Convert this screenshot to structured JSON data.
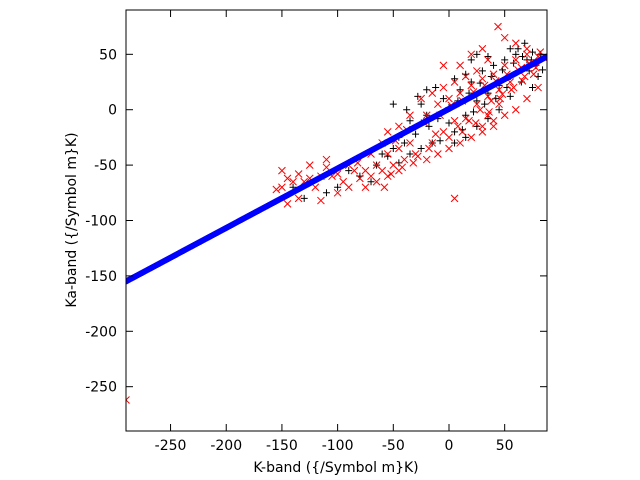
{
  "chart_data": {
    "type": "scatter",
    "title": "",
    "xlabel": "K-band ({/Symbol m}K)",
    "ylabel": "Ka-band ({/Symbol m}K)",
    "xlim": [
      -290,
      88
    ],
    "ylim": [
      -290,
      90
    ],
    "xticks": [
      -250,
      -200,
      -150,
      -100,
      -50,
      0,
      50
    ],
    "yticks": [
      -250,
      -200,
      -150,
      -100,
      -50,
      0,
      50
    ],
    "grid": false,
    "legend": "none",
    "series": [
      {
        "marker": "plus",
        "color": "#000000",
        "points": [
          [
            -25,
            5
          ],
          [
            -18,
            -15
          ],
          [
            -10,
            -8
          ],
          [
            -5,
            10
          ],
          [
            0,
            2
          ],
          [
            5,
            -20
          ],
          [
            10,
            18
          ],
          [
            15,
            -5
          ],
          [
            20,
            25
          ],
          [
            25,
            8
          ],
          [
            30,
            35
          ],
          [
            35,
            15
          ],
          [
            40,
            40
          ],
          [
            45,
            22
          ],
          [
            50,
            45
          ],
          [
            55,
            30
          ],
          [
            60,
            50
          ],
          [
            62,
            55
          ],
          [
            66,
            48
          ],
          [
            70,
            45
          ],
          [
            72,
            35
          ],
          [
            75,
            52
          ],
          [
            78,
            40
          ],
          [
            80,
            30
          ],
          [
            82,
            50
          ],
          [
            84,
            36
          ],
          [
            -40,
            -30
          ],
          [
            -45,
            -25
          ],
          [
            -50,
            -35
          ],
          [
            -55,
            -42
          ],
          [
            -60,
            -40
          ],
          [
            -65,
            -50
          ],
          [
            -70,
            -65
          ],
          [
            -35,
            -10
          ],
          [
            -30,
            -22
          ],
          [
            -20,
            -5
          ],
          [
            -12,
            20
          ],
          [
            -8,
            -28
          ],
          [
            0,
            -12
          ],
          [
            8,
            8
          ],
          [
            12,
            -18
          ],
          [
            18,
            15
          ],
          [
            22,
            -2
          ],
          [
            28,
            24
          ],
          [
            32,
            5
          ],
          [
            38,
            30
          ],
          [
            42,
            10
          ],
          [
            48,
            36
          ],
          [
            52,
            20
          ],
          [
            58,
            42
          ],
          [
            20,
            45
          ],
          [
            25,
            50
          ],
          [
            -80,
            -60
          ],
          [
            -90,
            -55
          ],
          [
            -100,
            -70
          ],
          [
            -110,
            -75
          ],
          [
            -130,
            -80
          ],
          [
            -140,
            -70
          ],
          [
            -45,
            -48
          ],
          [
            -35,
            -40
          ],
          [
            -25,
            -35
          ],
          [
            -15,
            -30
          ],
          [
            5,
            -30
          ],
          [
            15,
            -25
          ],
          [
            25,
            -15
          ],
          [
            35,
            -8
          ],
          [
            45,
            0
          ],
          [
            55,
            12
          ],
          [
            65,
            25
          ],
          [
            75,
            20
          ],
          [
            -50,
            5
          ],
          [
            -38,
            0
          ],
          [
            -28,
            12
          ],
          [
            -20,
            18
          ],
          [
            5,
            28
          ],
          [
            15,
            32
          ],
          [
            68,
            60
          ],
          [
            74,
            45
          ],
          [
            55,
            55
          ],
          [
            35,
            48
          ]
        ]
      },
      {
        "marker": "x",
        "color": "#ff0000",
        "points": [
          [
            -290,
            -262
          ],
          [
            44,
            75
          ],
          [
            5,
            -80
          ],
          [
            -20,
            -5
          ],
          [
            -15,
            -30
          ],
          [
            -10,
            5
          ],
          [
            -5,
            -20
          ],
          [
            0,
            10
          ],
          [
            5,
            -10
          ],
          [
            10,
            15
          ],
          [
            15,
            -8
          ],
          [
            20,
            22
          ],
          [
            25,
            5
          ],
          [
            30,
            28
          ],
          [
            35,
            12
          ],
          [
            40,
            32
          ],
          [
            45,
            18
          ],
          [
            50,
            40
          ],
          [
            55,
            25
          ],
          [
            60,
            45
          ],
          [
            65,
            38
          ],
          [
            70,
            50
          ],
          [
            75,
            42
          ],
          [
            80,
            48
          ],
          [
            30,
            -15
          ],
          [
            35,
            -5
          ],
          [
            40,
            -10
          ],
          [
            45,
            5
          ],
          [
            -30,
            -40
          ],
          [
            -35,
            -30
          ],
          [
            -40,
            -45
          ],
          [
            -45,
            -35
          ],
          [
            -50,
            -50
          ],
          [
            -55,
            -40
          ],
          [
            -60,
            -55
          ],
          [
            -65,
            -50
          ],
          [
            -70,
            -60
          ],
          [
            -75,
            -55
          ],
          [
            -80,
            -62
          ],
          [
            -85,
            -55
          ],
          [
            -90,
            -70
          ],
          [
            -95,
            -65
          ],
          [
            -100,
            -58
          ],
          [
            -105,
            -60
          ],
          [
            -110,
            -52
          ],
          [
            -115,
            -60
          ],
          [
            -120,
            -70
          ],
          [
            -125,
            -62
          ],
          [
            -130,
            -65
          ],
          [
            -135,
            -80
          ],
          [
            -140,
            -65
          ],
          [
            -145,
            -85
          ],
          [
            -150,
            -70
          ],
          [
            -155,
            -72
          ],
          [
            -55,
            -20
          ],
          [
            -45,
            -15
          ],
          [
            -35,
            -5
          ],
          [
            -25,
            10
          ],
          [
            -15,
            15
          ],
          [
            -5,
            20
          ],
          [
            5,
            25
          ],
          [
            15,
            30
          ],
          [
            25,
            35
          ],
          [
            35,
            45
          ],
          [
            -20,
            -45
          ],
          [
            -10,
            -40
          ],
          [
            0,
            -35
          ],
          [
            10,
            -30
          ],
          [
            20,
            -25
          ],
          [
            30,
            -20
          ],
          [
            40,
            -15
          ],
          [
            50,
            -5
          ],
          [
            60,
            0
          ],
          [
            70,
            10
          ],
          [
            80,
            20
          ],
          [
            -65,
            -65
          ],
          [
            -55,
            -60
          ],
          [
            -45,
            -55
          ],
          [
            -28,
            -42
          ],
          [
            -12,
            -22
          ],
          [
            8,
            -15
          ],
          [
            18,
            -10
          ],
          [
            28,
            0
          ],
          [
            38,
            8
          ],
          [
            48,
            14
          ],
          [
            58,
            20
          ],
          [
            68,
            30
          ],
          [
            78,
            38
          ],
          [
            -48,
            -28
          ],
          [
            -38,
            -18
          ],
          [
            -22,
            -12
          ],
          [
            -8,
            -5
          ],
          [
            2,
            4
          ],
          [
            12,
            8
          ],
          [
            22,
            16
          ],
          [
            32,
            22
          ],
          [
            42,
            26
          ],
          [
            52,
            32
          ],
          [
            62,
            36
          ],
          [
            72,
            42
          ],
          [
            82,
            52
          ],
          [
            -70,
            -40
          ],
          [
            -60,
            -30
          ],
          [
            -90,
            -50
          ],
          [
            -100,
            -75
          ],
          [
            -110,
            -45
          ],
          [
            -115,
            -82
          ],
          [
            -125,
            -50
          ],
          [
            -135,
            -58
          ],
          [
            -145,
            -62
          ],
          [
            -150,
            -55
          ],
          [
            20,
            50
          ],
          [
            30,
            55
          ],
          [
            50,
            65
          ],
          [
            60,
            60
          ],
          [
            70,
            55
          ],
          [
            -5,
            40
          ],
          [
            10,
            40
          ],
          [
            -75,
            -70
          ],
          [
            -82,
            -48
          ],
          [
            -58,
            -70
          ],
          [
            -52,
            -58
          ],
          [
            -42,
            -52
          ],
          [
            -32,
            -48
          ],
          [
            -18,
            -35
          ],
          [
            0,
            -25
          ],
          [
            12,
            -20
          ],
          [
            24,
            -12
          ],
          [
            36,
            -2
          ],
          [
            46,
            10
          ],
          [
            56,
            18
          ],
          [
            66,
            26
          ],
          [
            76,
            32
          ],
          [
            86,
            46
          ]
        ]
      },
      {
        "marker": "circle",
        "color": "#0000ff",
        "line": {
          "x_start": -290,
          "x_end": 88,
          "y_start": -155,
          "y_end": 48,
          "point_count": 400
        }
      }
    ]
  }
}
